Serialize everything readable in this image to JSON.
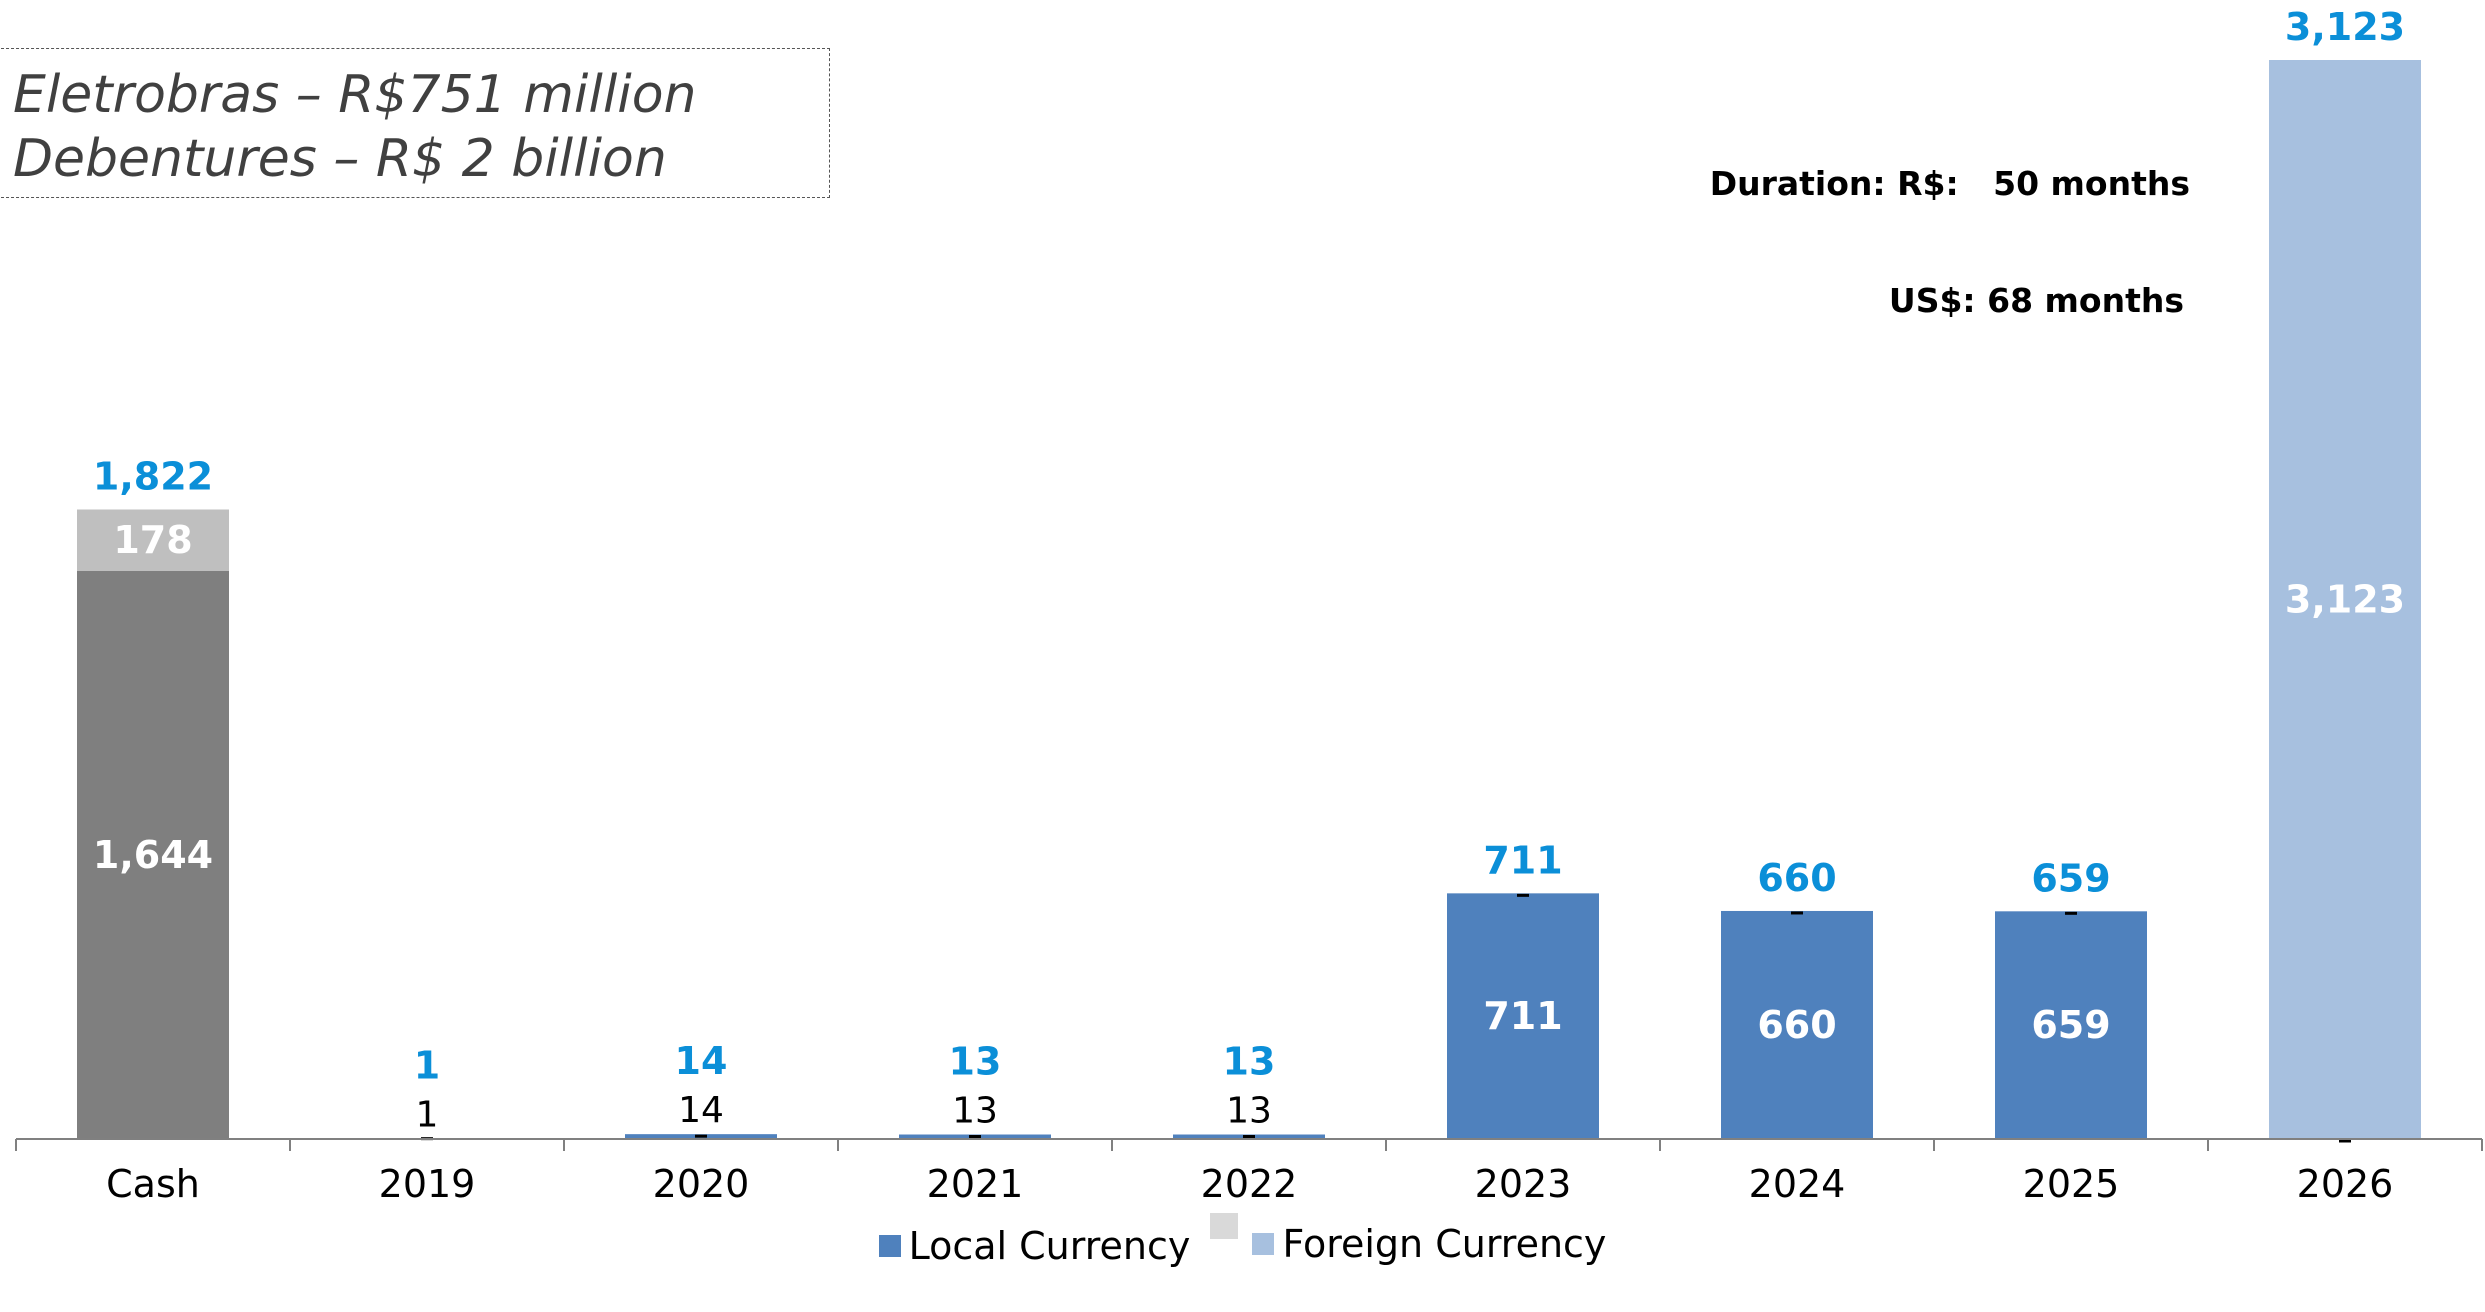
{
  "annotation": {
    "line1": "Eletrobras – R$751 million",
    "line2": "Debentures – R$ 2 billion"
  },
  "duration": {
    "line1": "Duration: R$:   50 months",
    "line2": "US$: 68 months"
  },
  "colors": {
    "cash_total": "#7f7f7f",
    "cash_other": "#bfbfbf",
    "local": "#4f81bd",
    "foreign": "#a7c0df",
    "total_label": "#0b8fd8",
    "legend_middle": "#d9d9d9"
  },
  "legend": {
    "local_label": "Local Currency",
    "foreign_label": "Foreign Currency"
  },
  "chart_data": {
    "type": "bar",
    "stacked": true,
    "categories": [
      "Cash",
      "2019",
      "2020",
      "2021",
      "2022",
      "2023",
      "2024",
      "2025",
      "2026"
    ],
    "series": [
      {
        "name": "",
        "key": "cash",
        "values": [
          1644,
          null,
          null,
          null,
          null,
          null,
          null,
          null,
          null
        ]
      },
      {
        "name": "",
        "key": "cash_extra",
        "values": [
          178,
          null,
          null,
          null,
          null,
          null,
          null,
          null,
          null
        ]
      },
      {
        "name": "Local Currency",
        "key": "local",
        "values": [
          null,
          1,
          14,
          13,
          13,
          711,
          660,
          659,
          null
        ]
      },
      {
        "name": "Foreign Currency",
        "key": "foreign",
        "values": [
          null,
          null,
          null,
          null,
          null,
          null,
          null,
          null,
          3123
        ]
      }
    ],
    "segment_labels": [
      [
        "1,644",
        "178"
      ],
      [
        "1"
      ],
      [
        "14"
      ],
      [
        "13"
      ],
      [
        "13"
      ],
      [
        "711"
      ],
      [
        "660"
      ],
      [
        "659"
      ],
      [
        "3,123"
      ]
    ],
    "totals": [
      "1,822",
      "1",
      "14",
      "13",
      "13",
      "711",
      "660",
      "659",
      "3,123"
    ],
    "ylim": [
      0,
      3123
    ],
    "grid": false,
    "legend_position": "bottom"
  }
}
